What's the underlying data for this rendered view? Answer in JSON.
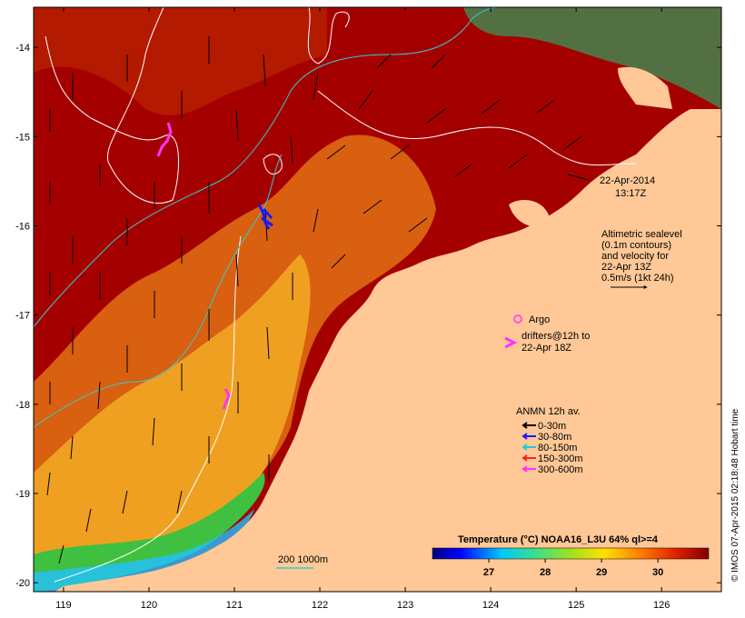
{
  "map": {
    "x_ticks": [
      "119",
      "120",
      "121",
      "122",
      "123",
      "124",
      "125",
      "126"
    ],
    "y_ticks": [
      "-14",
      "-15",
      "-16",
      "-17",
      "-18",
      "-19",
      "-20"
    ],
    "lon_range": [
      118.65,
      126.7
    ],
    "lat_range": [
      -20.1,
      -13.55
    ]
  },
  "timestamp": {
    "line1": "22-Apr-2014",
    "line2": "13:17Z"
  },
  "altimetry": {
    "lines": [
      "Altimetric sealevel",
      "(0.1m contours)",
      "and velocity for",
      "22-Apr 13Z",
      "0.5m/s (1kt 24h)"
    ]
  },
  "argo": {
    "label": "Argo"
  },
  "drifters": {
    "line1": "drifters@12h to",
    "line2": "22-Apr 18Z"
  },
  "anmn": {
    "title": "ANMN 12h av.",
    "items": [
      {
        "label": "0-30m",
        "color": "#000000"
      },
      {
        "label": "30-80m",
        "color": "#1a1aff"
      },
      {
        "label": "80-150m",
        "color": "#22cccc"
      },
      {
        "label": "150-300m",
        "color": "#ff2020"
      },
      {
        "label": "300-600m",
        "color": "#ff33ff"
      }
    ]
  },
  "bathymetry": {
    "label": "200  1000m"
  },
  "colorbar": {
    "title": "Temperature (°C) NOAA16_L3U 64% ql>=4",
    "ticks": [
      "27",
      "28",
      "29",
      "30"
    ],
    "range": [
      26.0,
      30.9
    ]
  },
  "credit": "© IMOS 07-Apr-2015 02:18:48 Hobart time",
  "colors": {
    "land": "#ffc896",
    "warm": "#a50000",
    "mid": "#e07808",
    "cool": "#f0b020"
  }
}
